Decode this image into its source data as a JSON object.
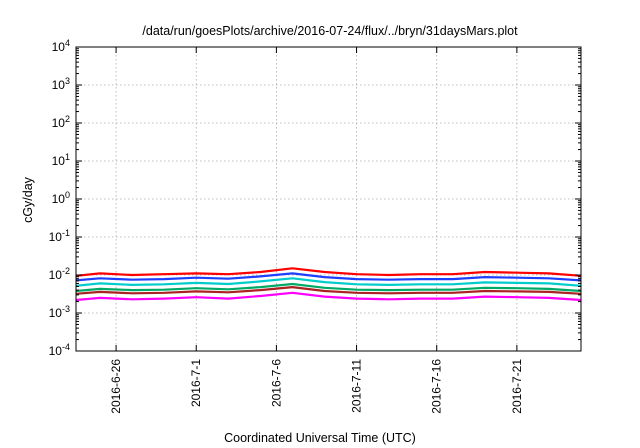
{
  "chart_data": {
    "type": "line",
    "title": "/data/run/goesPlots/archive/2016-07-24/flux/../bryn/31daysMars.plot",
    "xlabel": "Coordinated Universal Time (UTC)",
    "ylabel": "cGy/day",
    "yscale": "log",
    "ylim": [
      0.0001,
      10000
    ],
    "yticks": [
      {
        "value": 0.0001,
        "base": "10",
        "exp": "-4"
      },
      {
        "value": 0.001,
        "base": "10",
        "exp": "-3"
      },
      {
        "value": 0.01,
        "base": "10",
        "exp": "-2"
      },
      {
        "value": 0.1,
        "base": "10",
        "exp": "-1"
      },
      {
        "value": 1,
        "base": "10",
        "exp": "0"
      },
      {
        "value": 10,
        "base": "10",
        "exp": "1"
      },
      {
        "value": 100,
        "base": "10",
        "exp": "2"
      },
      {
        "value": 1000,
        "base": "10",
        "exp": "3"
      },
      {
        "value": 10000,
        "base": "10",
        "exp": "4"
      }
    ],
    "xlim": [
      "2016-06-23T12:00",
      "2016-07-25T00:00"
    ],
    "xticks": [
      "2016-6-26",
      "2016-7-1",
      "2016-7-6",
      "2016-7-11",
      "2016-7-16",
      "2016-7-21"
    ],
    "grid": true,
    "x": [
      "2016-06-23T12:00",
      "2016-06-25T00:00",
      "2016-06-27T00:00",
      "2016-06-29T00:00",
      "2016-07-01T00:00",
      "2016-07-03T00:00",
      "2016-07-05T00:00",
      "2016-07-07T00:00",
      "2016-07-09T00:00",
      "2016-07-11T00:00",
      "2016-07-13T00:00",
      "2016-07-15T00:00",
      "2016-07-17T00:00",
      "2016-07-19T00:00",
      "2016-07-21T00:00",
      "2016-07-23T00:00",
      "2016-07-25T00:00"
    ],
    "series": [
      {
        "color": "#ff0000",
        "values": [
          0.0095,
          0.011,
          0.01,
          0.0105,
          0.011,
          0.0105,
          0.012,
          0.015,
          0.012,
          0.0105,
          0.01,
          0.0105,
          0.0105,
          0.012,
          0.0115,
          0.011,
          0.0095
        ]
      },
      {
        "color": "#1f3fff",
        "values": [
          0.0072,
          0.0082,
          0.0075,
          0.0078,
          0.0085,
          0.008,
          0.0092,
          0.011,
          0.0088,
          0.0078,
          0.0075,
          0.0078,
          0.0078,
          0.0088,
          0.0085,
          0.0082,
          0.0072
        ]
      },
      {
        "color": "#00cccc",
        "values": [
          0.0052,
          0.006,
          0.0055,
          0.0057,
          0.0062,
          0.0058,
          0.0068,
          0.0082,
          0.0065,
          0.0057,
          0.0055,
          0.0057,
          0.0057,
          0.0064,
          0.0062,
          0.006,
          0.0052
        ]
      },
      {
        "color": "#00aa66",
        "values": [
          0.0038,
          0.0043,
          0.004,
          0.0041,
          0.0045,
          0.0042,
          0.0048,
          0.0058,
          0.0046,
          0.0041,
          0.004,
          0.0041,
          0.0041,
          0.0046,
          0.0045,
          0.0043,
          0.0038
        ]
      },
      {
        "color": "#aa2222",
        "values": [
          0.0032,
          0.0036,
          0.0033,
          0.0034,
          0.0037,
          0.0035,
          0.004,
          0.0048,
          0.0038,
          0.0034,
          0.0033,
          0.0034,
          0.0034,
          0.0038,
          0.0037,
          0.0036,
          0.0032
        ]
      },
      {
        "color": "#ff00ff",
        "values": [
          0.0022,
          0.0025,
          0.0023,
          0.0024,
          0.0026,
          0.0024,
          0.0028,
          0.0034,
          0.0027,
          0.0024,
          0.0023,
          0.0024,
          0.0024,
          0.0027,
          0.0026,
          0.0025,
          0.0022
        ]
      }
    ]
  }
}
